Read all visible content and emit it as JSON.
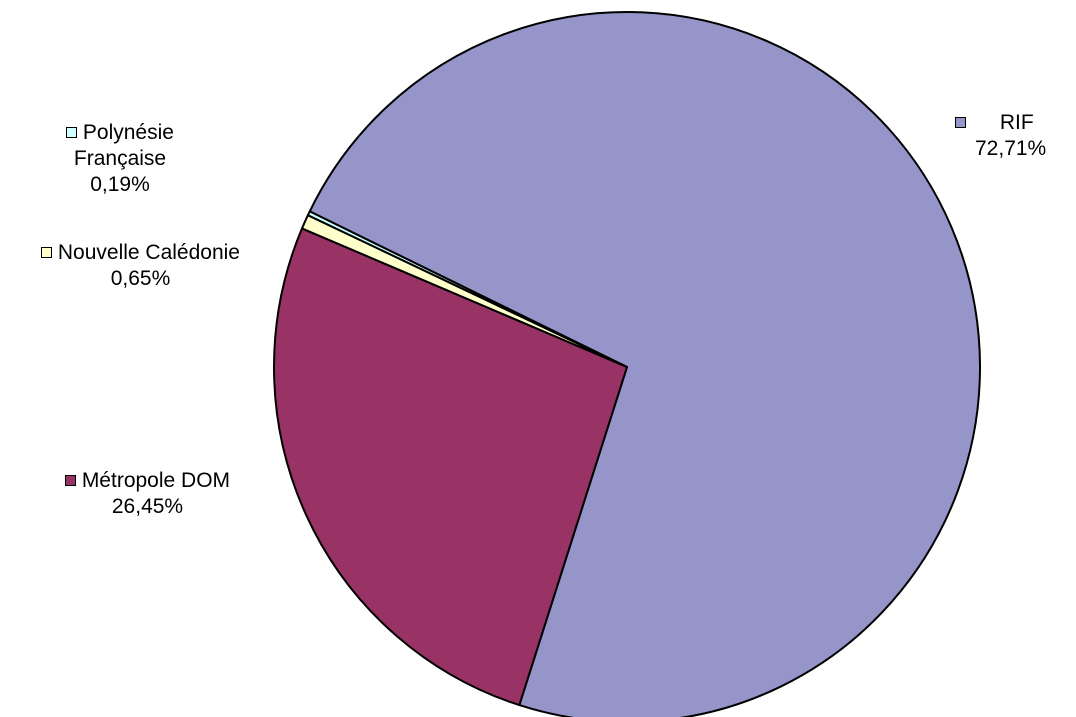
{
  "chart_data": {
    "type": "pie",
    "slices": [
      {
        "label": "RIF",
        "value": 72.71,
        "value_text": "72,71%",
        "color": "#9595C9"
      },
      {
        "label": "Métropole DOM",
        "value": 26.45,
        "value_text": "26,45%",
        "color": "#993366"
      },
      {
        "label": "Nouvelle Calédonie",
        "value": 0.65,
        "value_text": "0,65%",
        "color": "#FFFFCC"
      },
      {
        "label": "Polynésie Française",
        "label_lines": [
          "Polynésie",
          "Française"
        ],
        "value": 0.19,
        "value_text": "0,19%",
        "color": "#CCFFFF"
      }
    ],
    "legend": "none",
    "data_labels": "outside"
  }
}
